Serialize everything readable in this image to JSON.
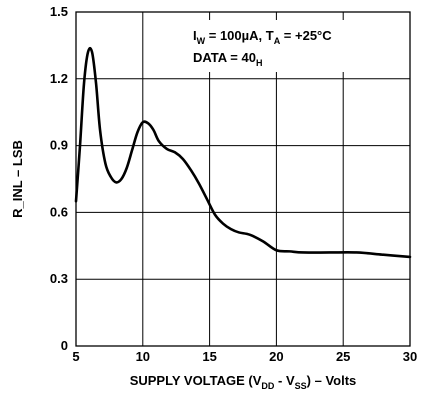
{
  "chart_data": {
    "type": "line",
    "title": "",
    "annotations": [
      {
        "main": "I",
        "sub": "W",
        "rest": " = 100µA, T",
        "sub2": "A",
        "rest2": " = +25°C"
      },
      {
        "main": "DATA = 40",
        "sub": "H"
      }
    ],
    "xlabel": {
      "prefix": "SUPPLY VOLTAGE (V",
      "sub1": "DD",
      "mid": " - V",
      "sub2": "SS",
      "suffix": ") – Volts"
    },
    "ylabel": "R_INL – LSB",
    "xlim": [
      5,
      30
    ],
    "ylim": [
      0,
      1.5
    ],
    "xticks": [
      5,
      10,
      15,
      20,
      25,
      30
    ],
    "xtick_labels": [
      "5",
      "10",
      "15",
      "20",
      "25",
      "30"
    ],
    "yticks": [
      0,
      0.3,
      0.6,
      0.9,
      1.2,
      1.5
    ],
    "ytick_labels": [
      "0",
      "0.3",
      "0.6",
      "0.9",
      "1.2",
      "1.5"
    ],
    "grid": true,
    "line_color": "#000000",
    "series": [
      {
        "x": [
          5.0,
          5.3,
          5.6,
          5.9,
          6.2,
          6.5,
          6.8,
          7.2,
          7.6,
          8.0,
          8.4,
          8.8,
          9.2,
          9.6,
          10.0,
          10.4,
          10.8,
          11.2,
          11.8,
          12.4,
          13.0,
          13.6,
          14.2,
          14.8,
          15.4,
          16.0,
          16.6,
          17.2,
          18.0,
          19.0,
          20.0,
          21.0,
          22.0,
          24.0,
          26.0,
          28.0,
          30.0
        ],
        "y": [
          0.65,
          0.9,
          1.18,
          1.32,
          1.32,
          1.18,
          0.97,
          0.82,
          0.76,
          0.735,
          0.75,
          0.8,
          0.88,
          0.96,
          1.005,
          1.0,
          0.97,
          0.92,
          0.885,
          0.87,
          0.84,
          0.79,
          0.73,
          0.66,
          0.59,
          0.55,
          0.525,
          0.51,
          0.5,
          0.47,
          0.43,
          0.425,
          0.42,
          0.42,
          0.42,
          0.41,
          0.4
        ]
      }
    ]
  }
}
